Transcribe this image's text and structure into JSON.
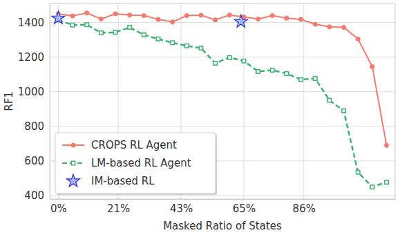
{
  "chart_data": {
    "type": "line",
    "xlabel": "Masked Ratio of States",
    "ylabel": "RF1",
    "x": [
      0,
      5,
      10,
      15,
      20,
      25,
      30,
      35,
      40,
      45,
      50,
      55,
      60,
      65,
      70,
      75,
      80,
      85,
      90,
      95,
      100,
      105,
      110,
      115
    ],
    "xlim": [
      -3,
      118
    ],
    "ylim": [
      380,
      1510
    ],
    "xticks": [
      {
        "value": 0,
        "label": "0%"
      },
      {
        "value": 21,
        "label": "21%"
      },
      {
        "value": 43,
        "label": "43%"
      },
      {
        "value": 65,
        "label": "65%"
      },
      {
        "value": 86,
        "label": "86%"
      }
    ],
    "yticks": [
      400,
      600,
      800,
      1000,
      1200,
      1400
    ],
    "grid": true,
    "legend": "lower left",
    "series": [
      {
        "name": "CROPS RL Agent",
        "color": "#f07b6e",
        "type": "line",
        "marker": "circle",
        "line_style": "solid",
        "values": [
          1450,
          1438,
          1455,
          1420,
          1450,
          1443,
          1440,
          1418,
          1403,
          1440,
          1442,
          1415,
          1443,
          1432,
          1420,
          1440,
          1425,
          1418,
          1390,
          1375,
          1372,
          1305,
          1145,
          690
        ]
      },
      {
        "name": "LM-based RL Agent",
        "color": "#3cb371",
        "type": "line",
        "marker": "square",
        "line_style": "dashed",
        "values": [
          1415,
          1385,
          1387,
          1340,
          1343,
          1372,
          1328,
          1305,
          1283,
          1265,
          1252,
          1165,
          1198,
          1178,
          1117,
          1125,
          1105,
          1070,
          1077,
          950,
          890,
          535,
          450,
          478
        ]
      },
      {
        "name": "IM-based RL",
        "color": "#2233cc",
        "type": "scatter",
        "marker": "star",
        "x": [
          0,
          64
        ],
        "values": [
          1425,
          1405
        ]
      }
    ]
  }
}
